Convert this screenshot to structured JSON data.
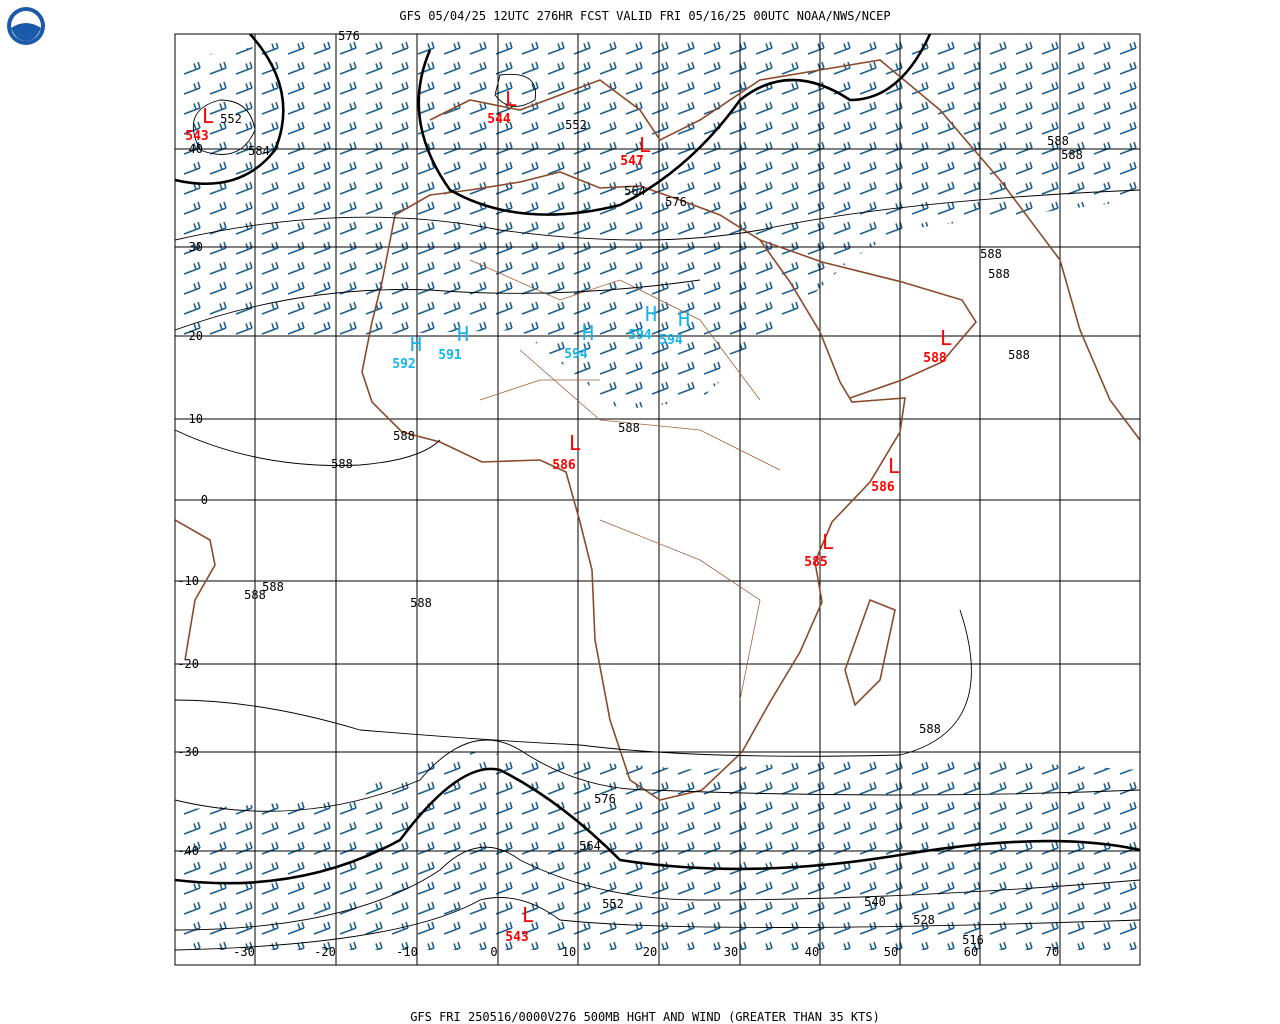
{
  "header": {
    "title": "GFS 05/04/25 12UTC 276HR FCST VALID FRI 05/16/25 00UTC NOAA/NWS/NCEP"
  },
  "footer": {
    "title": "GFS FRI 250516/0000V276 500MB HGHT AND WIND (GREATER THAN 35 KTS)"
  },
  "grid": {
    "lat_labels": [
      40,
      30,
      20,
      10,
      0,
      -10,
      -20,
      -30,
      -40
    ],
    "lon_labels": [
      -30,
      -20,
      -10,
      0,
      10,
      20,
      30,
      40,
      50,
      60,
      70
    ]
  },
  "centers": [
    {
      "letter": "L",
      "value": 543
    },
    {
      "letter": "L",
      "value": 544
    },
    {
      "letter": "L",
      "value": 547
    },
    {
      "letter": "H",
      "value": 592
    },
    {
      "letter": "H",
      "value": 591
    },
    {
      "letter": "H",
      "value": 594
    },
    {
      "letter": "H",
      "value": 594
    },
    {
      "letter": "H",
      "value": 594
    },
    {
      "letter": "L",
      "value": 588
    },
    {
      "letter": "L",
      "value": 586
    },
    {
      "letter": "L",
      "value": 586
    },
    {
      "letter": "L",
      "value": 585
    },
    {
      "letter": "L",
      "value": 543
    }
  ],
  "contour_labels": [
    552,
    584,
    576,
    552,
    564,
    576,
    588,
    588,
    588,
    588,
    588,
    588,
    588,
    588,
    588,
    588,
    588,
    588,
    576,
    564,
    552,
    540,
    528,
    516
  ]
}
